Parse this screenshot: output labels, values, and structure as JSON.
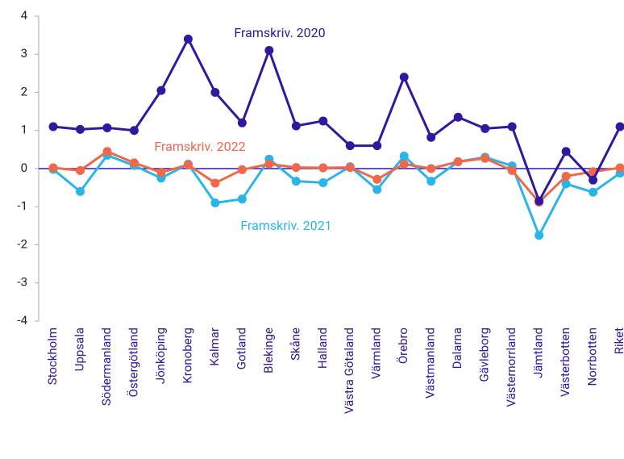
{
  "chart_data": {
    "type": "line",
    "categories": [
      "Stockholm",
      "Uppsala",
      "Södermanland",
      "Östergötland",
      "Jönköping",
      "Kronoberg",
      "Kalmar",
      "Gotland",
      "Blekinge",
      "Skåne",
      "Halland",
      "Västra Götaland",
      "Värmland",
      "Örebro",
      "Västmanland",
      "Dalarna",
      "Gävleborg",
      "Västernorrland",
      "Jämtland",
      "Västerbotten",
      "Norrbotten",
      "Riket"
    ],
    "series": [
      {
        "name": "Framskriv. 2020",
        "color": "#2e1a9e",
        "values": [
          1.1,
          1.03,
          1.07,
          1.0,
          2.05,
          3.4,
          2.0,
          1.2,
          3.1,
          1.12,
          1.25,
          0.6,
          0.6,
          2.4,
          0.82,
          1.35,
          1.05,
          1.1,
          -0.85,
          0.45,
          -0.3,
          1.1
        ]
      },
      {
        "name": "Framskriv. 2021",
        "color": "#29b5e8",
        "values": [
          -0.02,
          -0.6,
          0.35,
          0.08,
          -0.25,
          0.12,
          -0.9,
          -0.8,
          0.25,
          -0.33,
          -0.37,
          0.05,
          -0.55,
          0.33,
          -0.33,
          0.18,
          0.3,
          0.07,
          -1.75,
          -0.4,
          -0.62,
          -0.12
        ]
      },
      {
        "name": "Framskriv. 2022",
        "color": "#f0674a",
        "values": [
          0.02,
          -0.05,
          0.45,
          0.15,
          -0.1,
          0.1,
          -0.38,
          -0.03,
          0.12,
          0.03,
          0.02,
          0.03,
          -0.28,
          0.12,
          0.0,
          0.18,
          0.27,
          -0.05,
          -0.88,
          -0.2,
          -0.08,
          0.02
        ]
      }
    ],
    "ylim": [
      -4,
      4
    ],
    "yticks": [
      -4,
      -3,
      -2,
      -1,
      0,
      1,
      2,
      3,
      4
    ]
  }
}
